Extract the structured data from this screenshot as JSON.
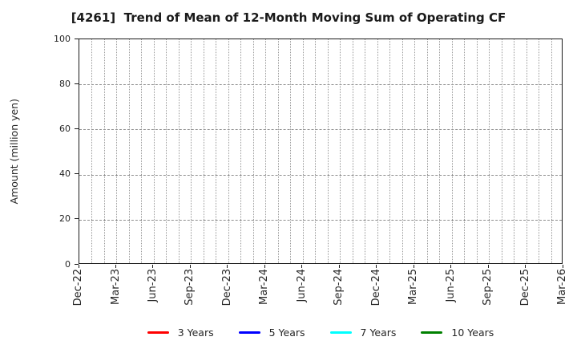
{
  "chart_data": {
    "type": "line",
    "title": "[4261]  Trend of Mean of 12-Month Moving Sum of Operating CF",
    "xlabel": "",
    "ylabel": "Amount (million yen)",
    "ylim": [
      0,
      100
    ],
    "yticks": [
      0,
      20,
      40,
      60,
      80,
      100
    ],
    "x_tick_labels": [
      "Dec-22",
      "Mar-23",
      "Jun-23",
      "Sep-23",
      "Dec-23",
      "Mar-24",
      "Jun-24",
      "Sep-24",
      "Dec-24",
      "Mar-25",
      "Jun-25",
      "Sep-25",
      "Dec-25",
      "Mar-26"
    ],
    "x_tick_interval_months": 3,
    "x_months_span": 39,
    "grid": true,
    "grid_minor_x_monthly": true,
    "legend_position": "bottom",
    "axis_color": "#1a1a1a",
    "grid_color": "#9a9a9a",
    "series": [
      {
        "name": "3 Years",
        "color": "#ff0000",
        "values": []
      },
      {
        "name": "5 Years",
        "color": "#0000ff",
        "values": []
      },
      {
        "name": "7 Years",
        "color": "#00ffff",
        "values": []
      },
      {
        "name": "10 Years",
        "color": "#008000",
        "values": []
      }
    ]
  }
}
